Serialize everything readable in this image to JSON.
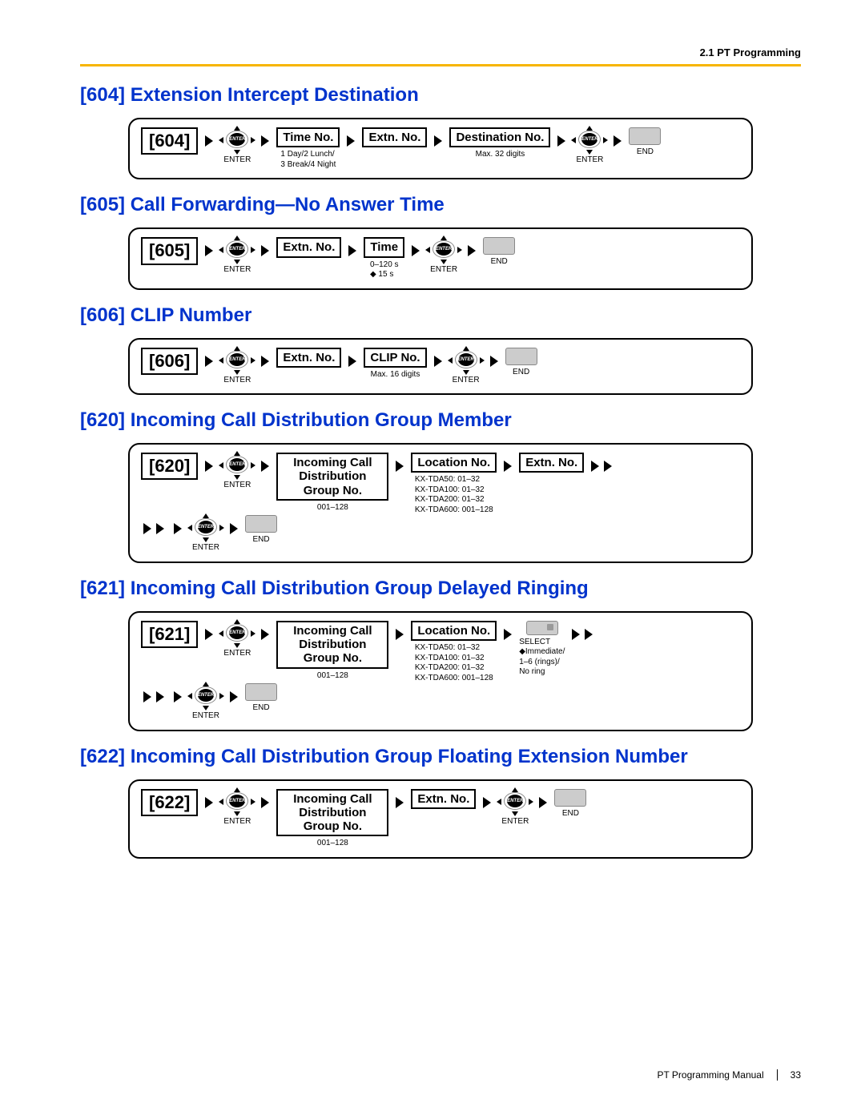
{
  "header": {
    "section": "2.1 PT Programming"
  },
  "footer": {
    "manual": "PT Programming Manual",
    "page": "33"
  },
  "colors": {
    "accent": "#0033cc",
    "divider": "#f7b500"
  },
  "sections": [
    {
      "title": "[604] Extension Intercept Destination",
      "code": "[604]",
      "row1": [
        {
          "type": "enter",
          "sub": "ENTER"
        },
        {
          "type": "field",
          "label": "Time No.",
          "sub": "1 Day/2 Lunch/\n3 Break/4 Night"
        },
        {
          "type": "field",
          "label": "Extn. No."
        },
        {
          "type": "field",
          "label": "Destination No.",
          "sub": "Max. 32 digits"
        },
        {
          "type": "enter",
          "sub": "ENTER"
        },
        {
          "type": "end",
          "sub": "END"
        }
      ]
    },
    {
      "title": "[605] Call Forwarding—No Answer Time",
      "code": "[605]",
      "row1": [
        {
          "type": "enter",
          "sub": "ENTER"
        },
        {
          "type": "field",
          "label": "Extn. No."
        },
        {
          "type": "field",
          "label": "Time",
          "sub": "0–120 s\n◆ 15 s"
        },
        {
          "type": "enter",
          "sub": "ENTER"
        },
        {
          "type": "end",
          "sub": "END"
        }
      ]
    },
    {
      "title": "[606] CLIP Number",
      "code": "[606]",
      "row1": [
        {
          "type": "enter",
          "sub": "ENTER"
        },
        {
          "type": "field",
          "label": "Extn. No."
        },
        {
          "type": "field",
          "label": "CLIP No.",
          "sub": "Max. 16 digits"
        },
        {
          "type": "enter",
          "sub": "ENTER"
        },
        {
          "type": "end",
          "sub": "END"
        }
      ]
    },
    {
      "title": "[620] Incoming Call Distribution Group Member",
      "code": "[620]",
      "row1": [
        {
          "type": "enter",
          "sub": "ENTER"
        },
        {
          "type": "field",
          "multi": true,
          "label": "Incoming Call\nDistribution\nGroup No.",
          "sub": "001–128"
        },
        {
          "type": "field",
          "label": "Location No.",
          "sub": "KX-TDA50: 01–32\nKX-TDA100: 01–32\nKX-TDA200: 01–32\nKX-TDA600: 001–128"
        },
        {
          "type": "field",
          "label": "Extn. No."
        },
        {
          "type": "double-arrow"
        }
      ],
      "row2": [
        {
          "type": "double-arrow"
        },
        {
          "type": "enter",
          "sub": "ENTER"
        },
        {
          "type": "end",
          "sub": "END"
        }
      ]
    },
    {
      "title": "[621] Incoming Call Distribution Group Delayed Ringing",
      "code": "[621]",
      "row1": [
        {
          "type": "enter",
          "sub": "ENTER"
        },
        {
          "type": "field",
          "multi": true,
          "label": "Incoming Call\nDistribution\nGroup No.",
          "sub": "001–128"
        },
        {
          "type": "field",
          "label": "Location No.",
          "sub": "KX-TDA50: 01–32\nKX-TDA100: 01–32\nKX-TDA200: 01–32\nKX-TDA600: 001–128"
        },
        {
          "type": "select",
          "sub": "SELECT\n◆Immediate/\n1–6 (rings)/\nNo ring"
        },
        {
          "type": "double-arrow"
        }
      ],
      "row2": [
        {
          "type": "double-arrow"
        },
        {
          "type": "enter",
          "sub": "ENTER"
        },
        {
          "type": "end",
          "sub": "END"
        }
      ]
    },
    {
      "title": "[622] Incoming Call Distribution Group Floating Extension Number",
      "code": "[622]",
      "row1": [
        {
          "type": "enter",
          "sub": "ENTER"
        },
        {
          "type": "field",
          "multi": true,
          "label": "Incoming Call\nDistribution\nGroup No.",
          "sub": "001–128"
        },
        {
          "type": "field",
          "label": "Extn. No."
        },
        {
          "type": "enter",
          "sub": "ENTER"
        },
        {
          "type": "end",
          "sub": "END"
        }
      ]
    }
  ]
}
